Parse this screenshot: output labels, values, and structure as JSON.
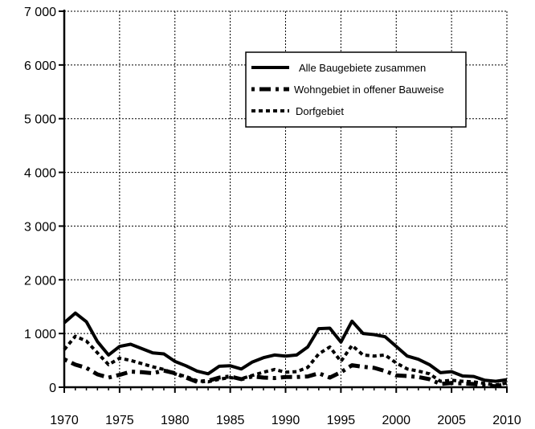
{
  "chart_data": {
    "type": "line",
    "title": "",
    "xlabel": "",
    "ylabel": "",
    "xlim": [
      1970,
      2010
    ],
    "ylim": [
      0,
      7000
    ],
    "x_ticks": [
      1970,
      1975,
      1980,
      1985,
      1990,
      1995,
      2000,
      2005,
      2010
    ],
    "y_ticks": [
      0,
      1000,
      2000,
      3000,
      4000,
      5000,
      6000,
      7000
    ],
    "x_tick_labels": [
      "1970",
      "1975",
      "1980",
      "1985",
      "1990",
      "1995",
      "2000",
      "2005",
      "2010"
    ],
    "y_tick_labels": [
      "0",
      "1 000",
      "2 000",
      "3 000",
      "4 000",
      "5 000",
      "6 000",
      "7 000"
    ],
    "grid": true,
    "legend_position": "top-right",
    "x": [
      1970,
      1971,
      1972,
      1973,
      1974,
      1975,
      1976,
      1977,
      1978,
      1979,
      1980,
      1981,
      1982,
      1983,
      1984,
      1985,
      1986,
      1987,
      1988,
      1989,
      1990,
      1991,
      1992,
      1993,
      1994,
      1995,
      1996,
      1997,
      1998,
      1999,
      2000,
      2001,
      2002,
      2003,
      2004,
      2005,
      2006,
      2007,
      2008,
      2009,
      2010
    ],
    "series": [
      {
        "name": "Alle Baugebiete zusammen",
        "style": "solid",
        "values": [
          1200,
          1380,
          1220,
          850,
          600,
          760,
          800,
          720,
          640,
          620,
          480,
          400,
          300,
          250,
          390,
          400,
          340,
          470,
          550,
          600,
          580,
          600,
          750,
          1090,
          1100,
          840,
          1230,
          1000,
          980,
          940,
          760,
          580,
          520,
          420,
          270,
          290,
          210,
          200,
          130,
          110,
          140
        ]
      },
      {
        "name": "Wohngebiet in offener Bauweise",
        "style": "dashdot",
        "values": [
          520,
          420,
          360,
          240,
          180,
          230,
          290,
          280,
          260,
          310,
          260,
          180,
          100,
          120,
          180,
          200,
          150,
          200,
          180,
          170,
          190,
          190,
          200,
          260,
          180,
          280,
          410,
          380,
          360,
          300,
          220,
          210,
          190,
          150,
          60,
          80,
          70,
          60,
          30,
          20,
          60
        ]
      },
      {
        "name": "Dorfgebiet",
        "style": "dotted",
        "values": [
          700,
          950,
          860,
          640,
          420,
          540,
          500,
          440,
          380,
          330,
          250,
          200,
          120,
          100,
          150,
          180,
          160,
          220,
          280,
          330,
          280,
          290,
          370,
          620,
          750,
          480,
          780,
          600,
          580,
          600,
          450,
          340,
          300,
          250,
          110,
          130,
          110,
          100,
          70,
          40,
          80
        ]
      }
    ]
  }
}
